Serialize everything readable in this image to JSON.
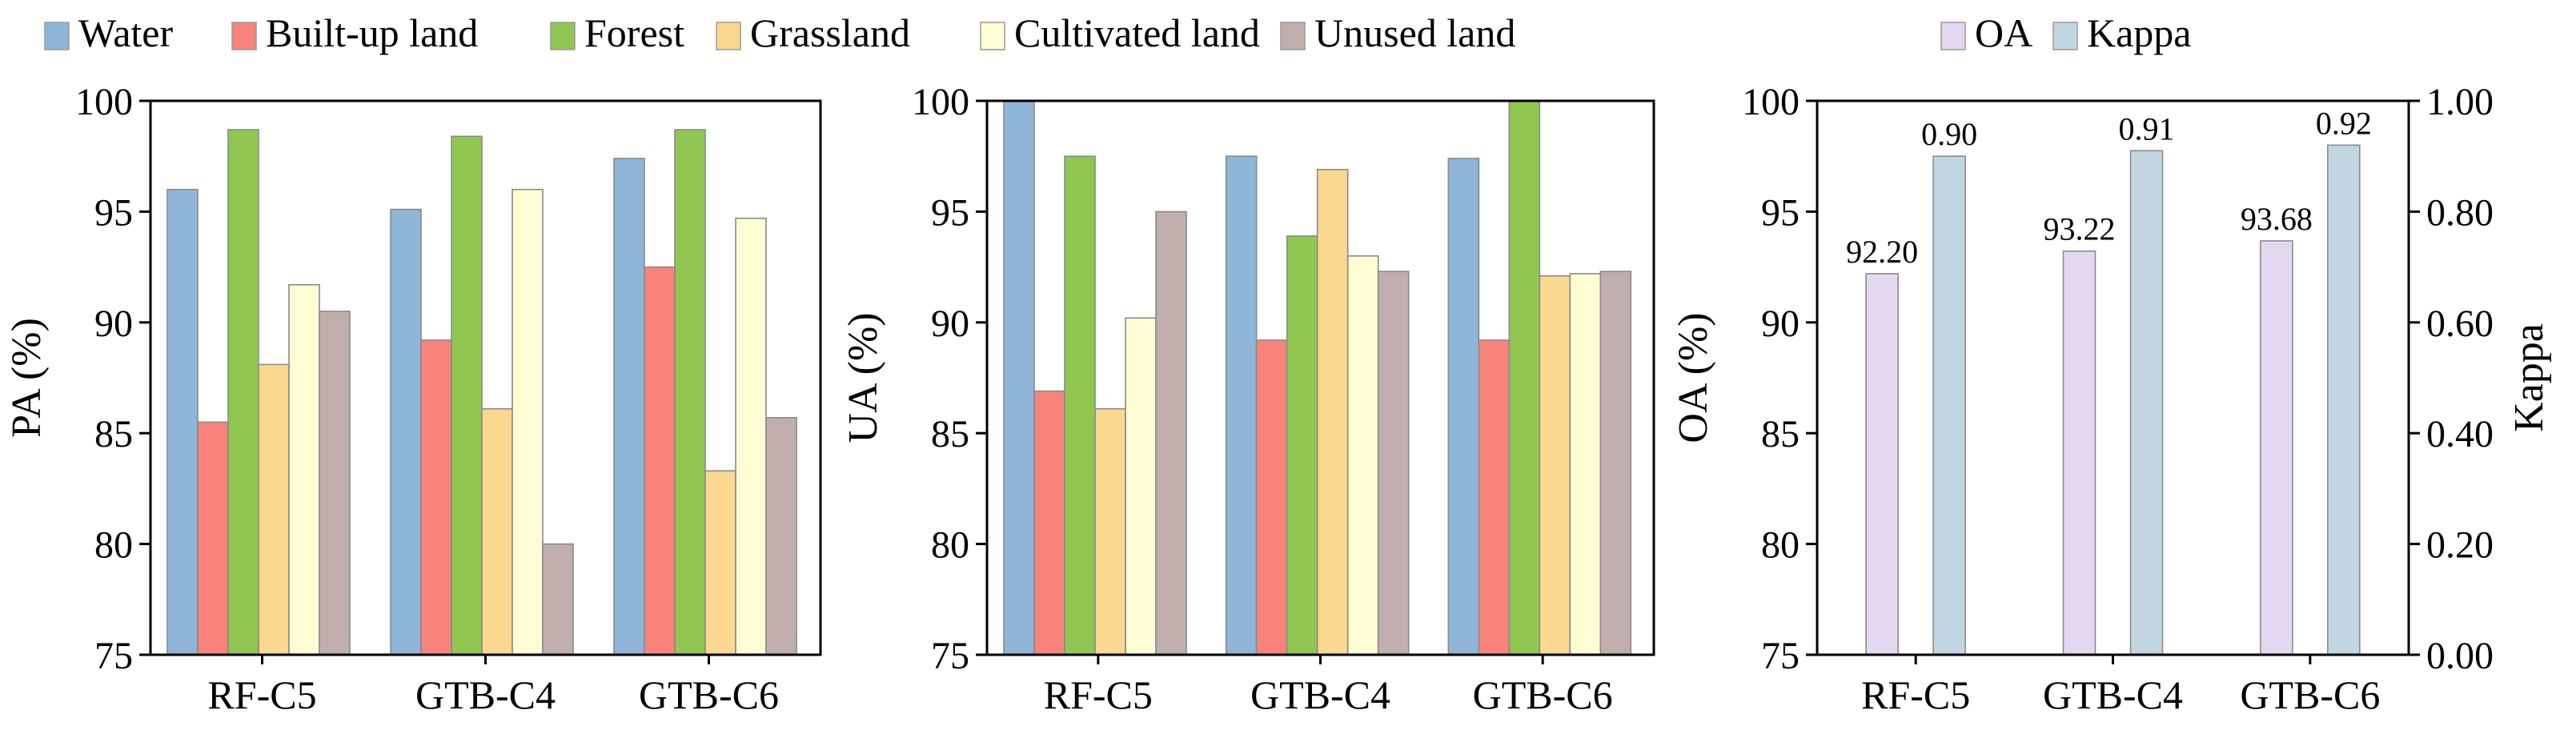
{
  "chart_data": [
    {
      "type": "bar",
      "ylabel": "PA (%)",
      "ylim": [
        75,
        100
      ],
      "yticks": [
        75,
        80,
        85,
        90,
        95,
        100
      ],
      "categories": [
        "RF-C5",
        "GTB-C4",
        "GTB-C6"
      ],
      "series": [
        {
          "name": "Water",
          "values": [
            96.0,
            95.1,
            97.4
          ]
        },
        {
          "name": "Built-up land",
          "values": [
            85.5,
            89.2,
            92.5
          ]
        },
        {
          "name": "Forest",
          "values": [
            98.7,
            98.4,
            98.7
          ]
        },
        {
          "name": "Grassland",
          "values": [
            88.1,
            86.1,
            83.3
          ]
        },
        {
          "name": "Cultivated land",
          "values": [
            91.7,
            96.0,
            94.7
          ]
        },
        {
          "name": "Unused land",
          "values": [
            90.5,
            80.0,
            85.7
          ]
        }
      ]
    },
    {
      "type": "bar",
      "ylabel": "UA (%)",
      "ylim": [
        75,
        100
      ],
      "yticks": [
        75,
        80,
        85,
        90,
        95,
        100
      ],
      "categories": [
        "RF-C5",
        "GTB-C4",
        "GTB-C6"
      ],
      "series": [
        {
          "name": "Water",
          "values": [
            100.0,
            97.5,
            97.4
          ]
        },
        {
          "name": "Built-up land",
          "values": [
            86.9,
            89.2,
            89.2
          ]
        },
        {
          "name": "Forest",
          "values": [
            97.5,
            93.9,
            100.0
          ]
        },
        {
          "name": "Grassland",
          "values": [
            86.1,
            96.9,
            92.1
          ]
        },
        {
          "name": "Cultivated land",
          "values": [
            90.2,
            93.0,
            92.2
          ]
        },
        {
          "name": "Unused land",
          "values": [
            95.0,
            92.3,
            92.3
          ]
        }
      ]
    },
    {
      "type": "bar",
      "ylabel": "OA (%)",
      "ylabel_right": "Kappa",
      "ylim": [
        75,
        100
      ],
      "ylim_right": [
        0,
        1
      ],
      "yticks": [
        75,
        80,
        85,
        90,
        95,
        100
      ],
      "yticks_right": [
        "0.00",
        "0.20",
        "0.40",
        "0.60",
        "0.80",
        "1.00"
      ],
      "categories": [
        "RF-C5",
        "GTB-C4",
        "GTB-C6"
      ],
      "series": [
        {
          "name": "OA",
          "axis": "left",
          "values": [
            92.2,
            93.22,
            93.68
          ],
          "labels": [
            "92.20",
            "93.22",
            "93.68"
          ]
        },
        {
          "name": "Kappa",
          "axis": "right",
          "values": [
            0.9,
            0.91,
            0.92
          ],
          "labels": [
            "0.90",
            "0.91",
            "0.92"
          ]
        }
      ]
    }
  ],
  "legend": {
    "left": [
      {
        "label": "Water",
        "color": "#8FB5D9"
      },
      {
        "label": "Built-up land",
        "color": "#F7837A"
      },
      {
        "label": "Forest",
        "color": "#8FC751"
      },
      {
        "label": "Grassland",
        "color": "#FBD890"
      },
      {
        "label": "Cultivated land",
        "color": "#FEFDD3"
      },
      {
        "label": "Unused land",
        "color": "#BFAEAC"
      }
    ],
    "right": [
      {
        "label": "OA",
        "color": "#E4D8F1"
      },
      {
        "label": "Kappa",
        "color": "#C2D6E2"
      }
    ]
  },
  "colors": {
    "Water": "#8FB5D9",
    "Built-up land": "#F7837A",
    "Forest": "#8FC751",
    "Grassland": "#FBD890",
    "Cultivated land": "#FEFDD3",
    "Unused land": "#BFAEAC",
    "OA": "#E4D8F1",
    "Kappa": "#C2D6E2"
  }
}
